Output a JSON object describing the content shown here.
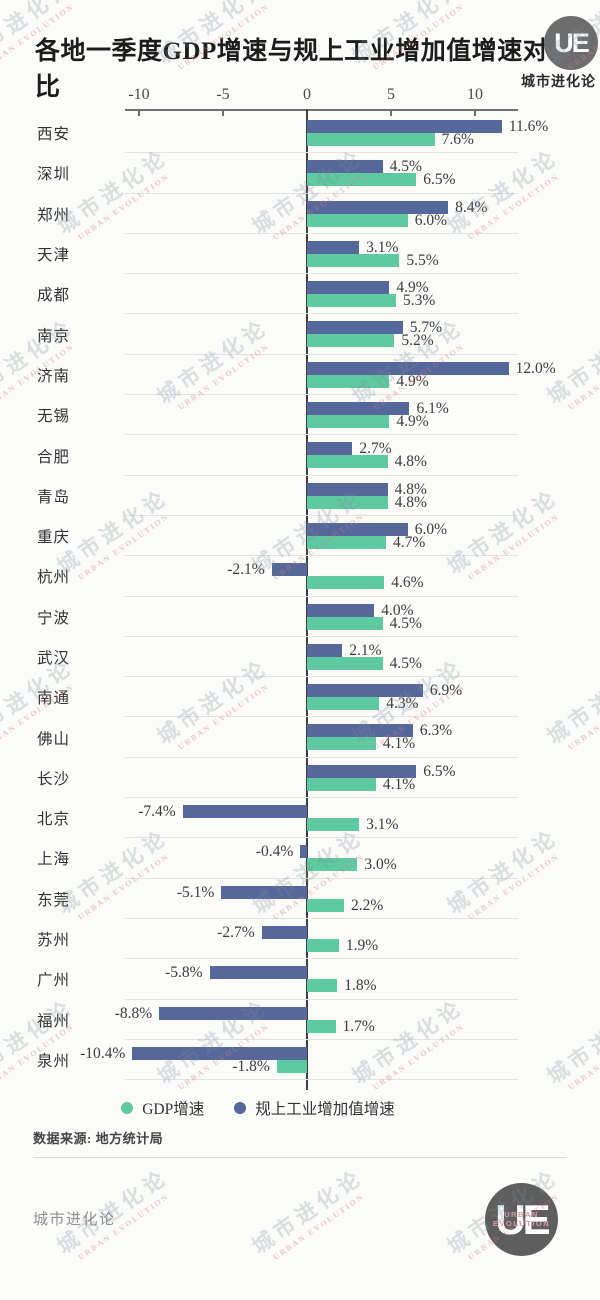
{
  "header": {
    "title": "各地一季度GDP增速与规上工业增加值增速对比",
    "brand_name": "城市进化论",
    "logo_text": "UE"
  },
  "chart_data": {
    "type": "bar",
    "orientation": "horizontal",
    "title": "各地一季度GDP增速与规上工业增加值增速对比",
    "categories": [
      "西安",
      "深圳",
      "郑州",
      "天津",
      "成都",
      "南京",
      "济南",
      "无锡",
      "合肥",
      "青岛",
      "重庆",
      "杭州",
      "宁波",
      "武汉",
      "南通",
      "佛山",
      "长沙",
      "北京",
      "上海",
      "东莞",
      "苏州",
      "广州",
      "福州",
      "泉州"
    ],
    "series": [
      {
        "name": "GDP增速",
        "color": "#5fc9a1",
        "values": [
          7.6,
          6.5,
          6.0,
          5.5,
          5.3,
          5.2,
          4.9,
          4.9,
          4.8,
          4.8,
          4.7,
          4.6,
          4.5,
          4.5,
          4.3,
          4.1,
          4.1,
          3.1,
          3.0,
          2.2,
          1.9,
          1.8,
          1.7,
          -1.8
        ]
      },
      {
        "name": "规上工业增加值增速",
        "color": "#56689a",
        "values": [
          11.6,
          4.5,
          8.4,
          3.1,
          4.9,
          5.7,
          12.0,
          6.1,
          2.7,
          4.8,
          6.0,
          -2.1,
          4.0,
          2.1,
          6.9,
          6.3,
          6.5,
          -7.4,
          -0.4,
          -5.1,
          -2.7,
          -5.8,
          -8.8,
          -10.4
        ]
      }
    ],
    "axis_ticks": [
      -10,
      -5,
      0,
      5,
      10
    ],
    "xlim": [
      -10.8,
      12.6
    ],
    "value_suffix": "%",
    "legend_position": "bottom",
    "grid": "row-separators"
  },
  "footer": {
    "source": "数据来源: 地方统计局",
    "brand": "城市进化论",
    "logo_text": "UE",
    "logo_word1": "URBAN",
    "logo_word2": "EVOLUTION"
  },
  "watermark": {
    "text": "城市进化论",
    "subtext": "URBAN EVOLUTION"
  }
}
